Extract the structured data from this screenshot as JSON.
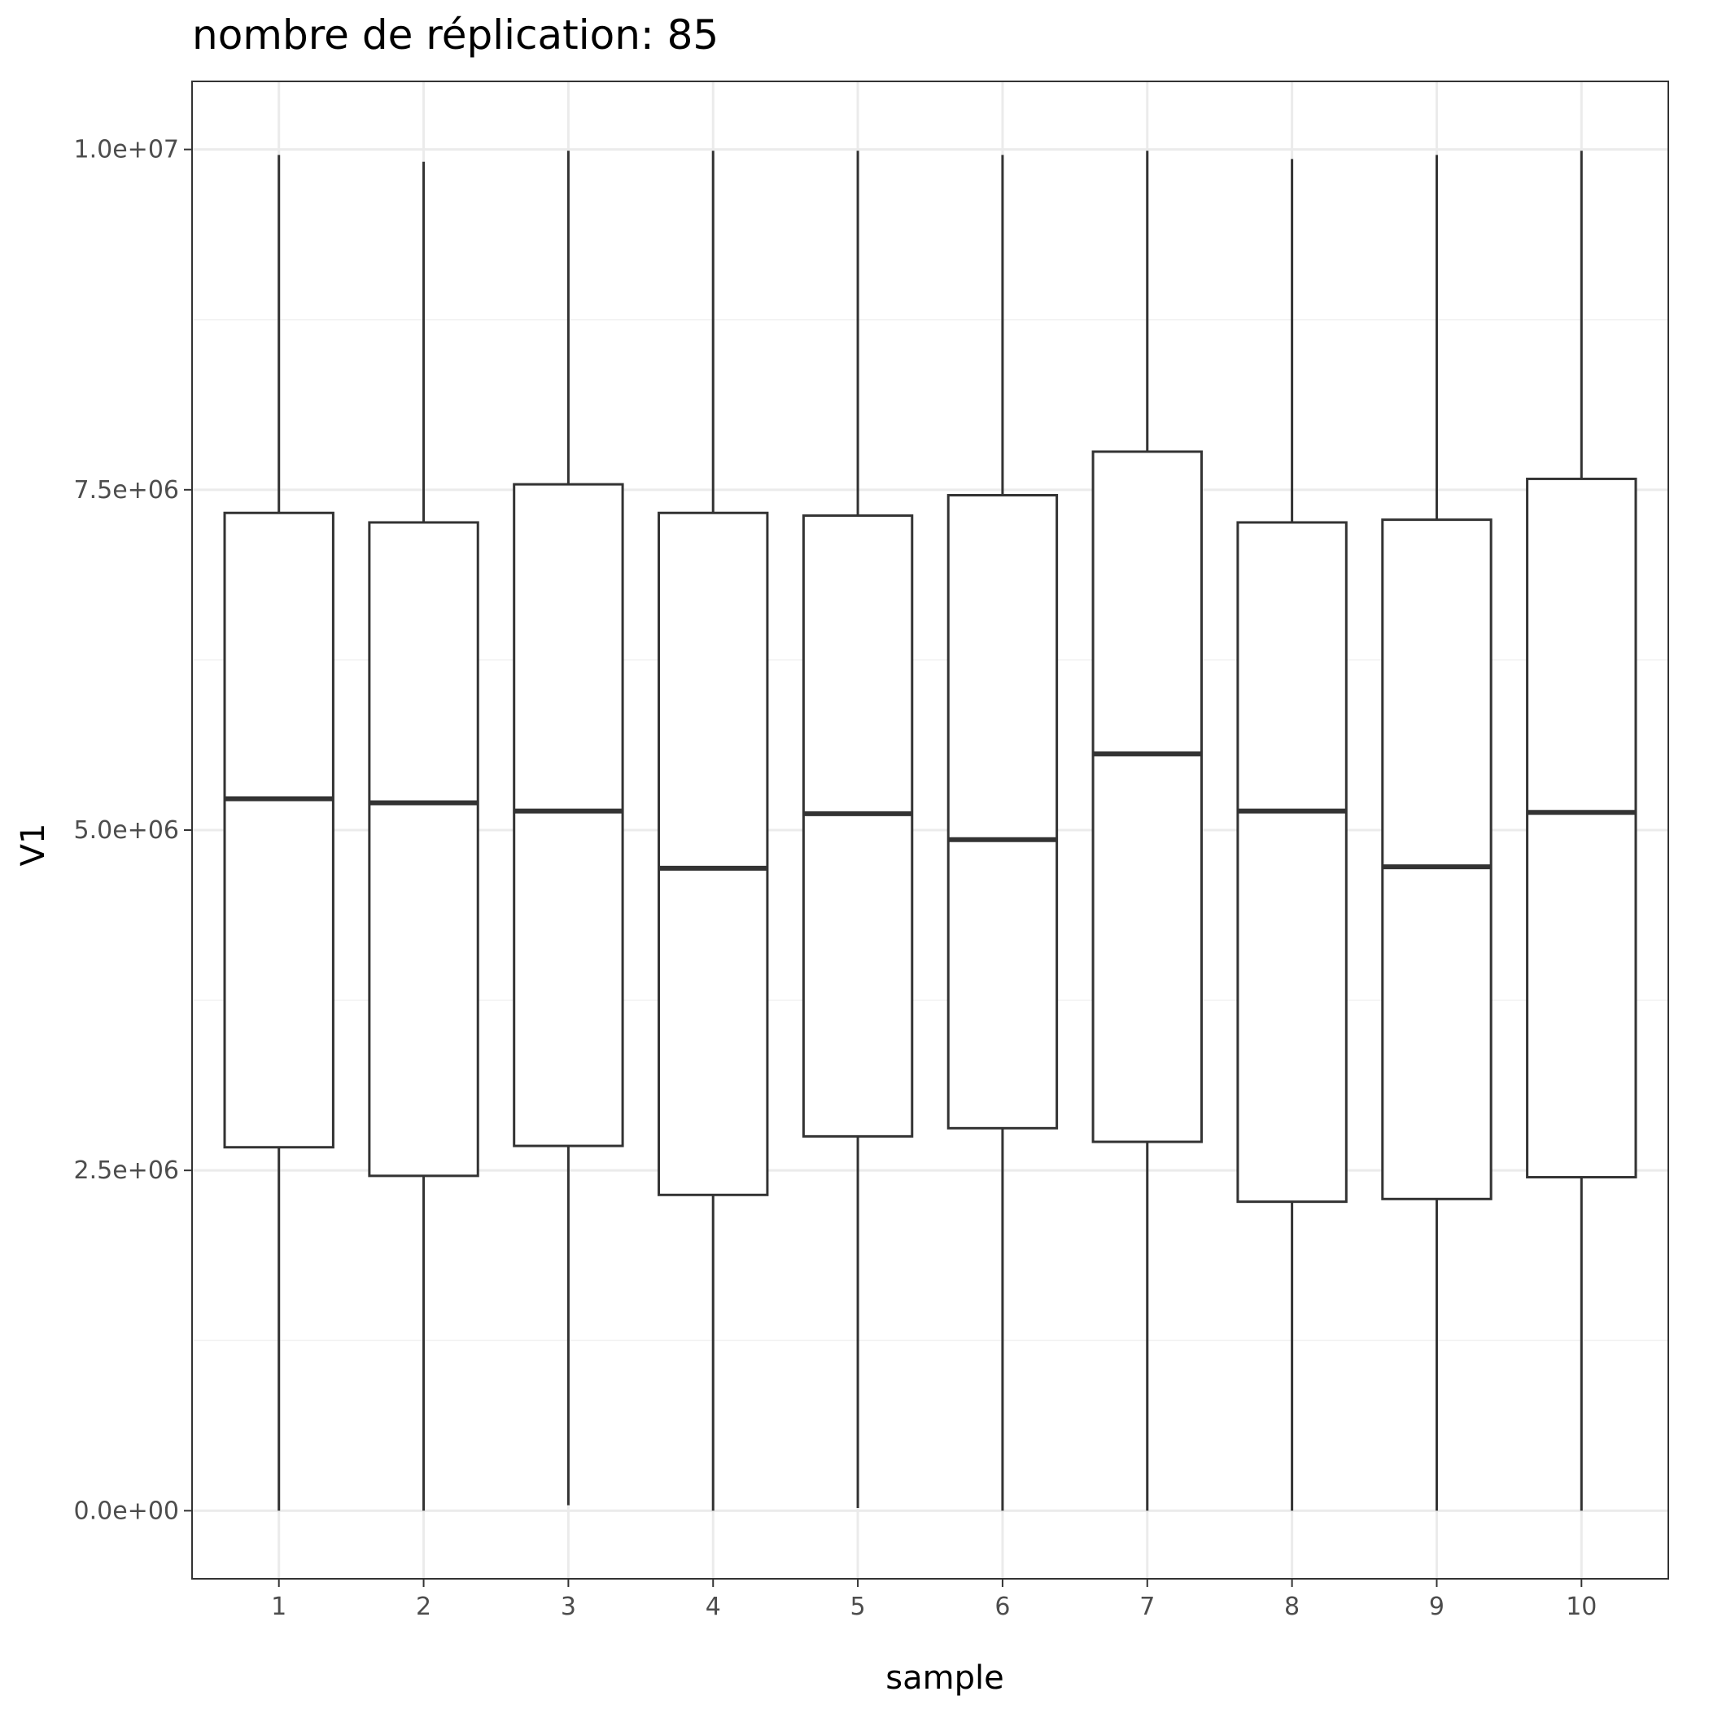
{
  "chart_data": {
    "type": "boxplot",
    "title": "nombre de réplication: 85",
    "xlabel": "sample",
    "ylabel": "V1",
    "categories": [
      "1",
      "2",
      "3",
      "4",
      "5",
      "6",
      "7",
      "8",
      "9",
      "10"
    ],
    "y_ticks": [
      0,
      2500000,
      5000000,
      7500000,
      10000000
    ],
    "y_tick_labels": [
      "0.0e+00",
      "2.5e+06",
      "5.0e+06",
      "7.5e+06",
      "1.0e+07"
    ],
    "ylim": [
      -500000,
      10500000
    ],
    "grid": true,
    "boxes": [
      {
        "sample": "1",
        "min": 0,
        "q1": 2670000,
        "median": 5230000,
        "q3": 7330000,
        "max": 9960000
      },
      {
        "sample": "2",
        "min": 0,
        "q1": 2460000,
        "median": 5200000,
        "q3": 7260000,
        "max": 9910000
      },
      {
        "sample": "3",
        "min": 40000,
        "q1": 2680000,
        "median": 5140000,
        "q3": 7540000,
        "max": 9990000
      },
      {
        "sample": "4",
        "min": 0,
        "q1": 2320000,
        "median": 4720000,
        "q3": 7330000,
        "max": 9990000
      },
      {
        "sample": "5",
        "min": 20000,
        "q1": 2750000,
        "median": 5120000,
        "q3": 7310000,
        "max": 9990000
      },
      {
        "sample": "6",
        "min": 0,
        "q1": 2810000,
        "median": 4930000,
        "q3": 7460000,
        "max": 9960000
      },
      {
        "sample": "7",
        "min": 0,
        "q1": 2710000,
        "median": 5560000,
        "q3": 7780000,
        "max": 9990000
      },
      {
        "sample": "8",
        "min": 0,
        "q1": 2270000,
        "median": 5140000,
        "q3": 7260000,
        "max": 9930000
      },
      {
        "sample": "9",
        "min": 0,
        "q1": 2290000,
        "median": 4730000,
        "q3": 7280000,
        "max": 9960000
      },
      {
        "sample": "10",
        "min": 0,
        "q1": 2450000,
        "median": 5130000,
        "q3": 7580000,
        "max": 9990000
      }
    ],
    "colors": {
      "panel_border": "#333333",
      "box_stroke": "#333333",
      "box_fill": "#ffffff",
      "grid_major": "#ebebeb",
      "grid_minor": "#f2f2f2",
      "tick_label": "#4d4d4d",
      "tick_mark": "#333333"
    }
  }
}
